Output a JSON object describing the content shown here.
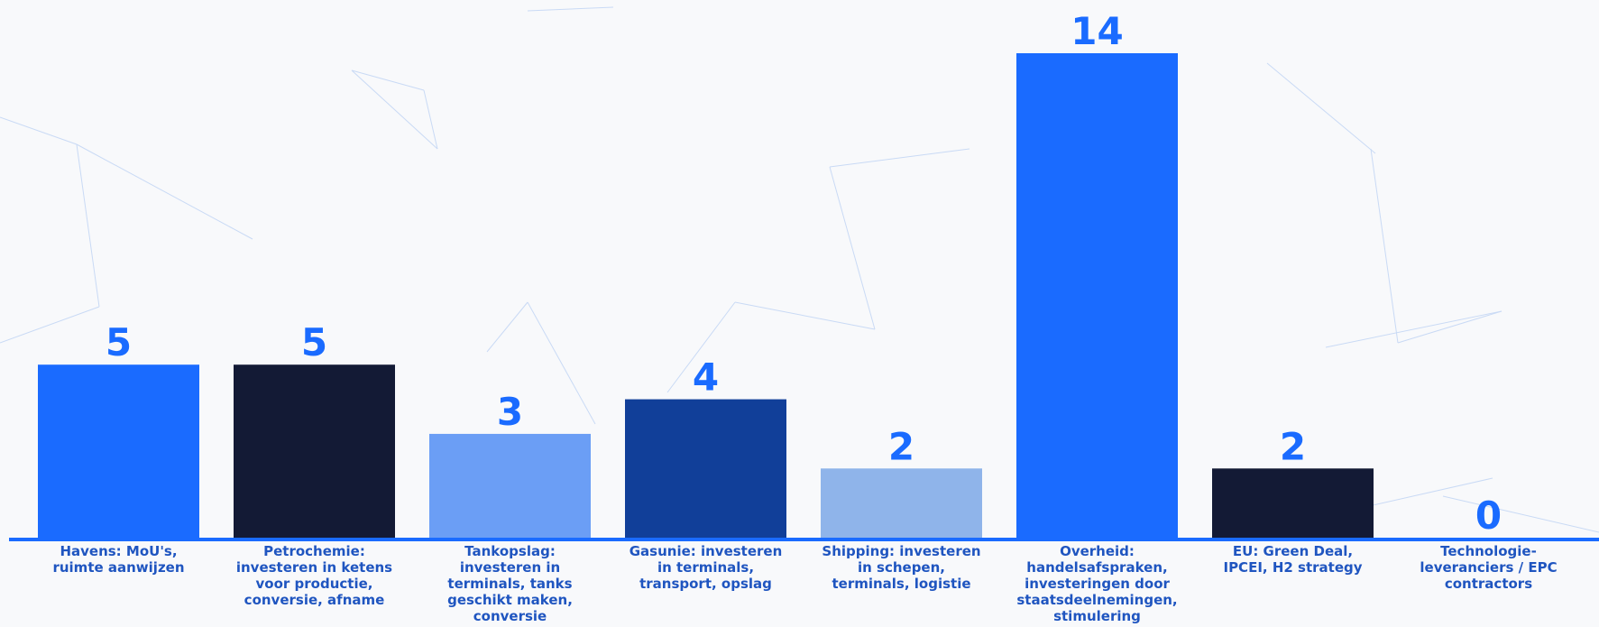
{
  "chart_data": {
    "type": "bar",
    "categories": [
      "Havens: MoU's, ruimte aanwijzen",
      "Petrochemie: investeren in ketens voor productie, conversie, afname",
      "Tankopslag: investeren in terminals, tanks geschikt maken, conversie",
      "Gasunie: investeren in terminals, transport, opslag",
      "Shipping: investeren in schepen, terminals, logistie",
      "Overheid: handelsafspraken, investeringen door staatsdeelnemingen, stimulering",
      "EU: Green Deal, IPCEI, H2 strategy",
      "Technologie-leveranciers / EPC contractors"
    ],
    "values": [
      5,
      5,
      3,
      4,
      2,
      14,
      2,
      0
    ],
    "colors": [
      "#1a6bff",
      "#131a35",
      "#6b9ef5",
      "#113f99",
      "#8fb4ea",
      "#1a6bff",
      "#131a35",
      "#1a6bff"
    ],
    "label_color": "#1a6bff"
  }
}
